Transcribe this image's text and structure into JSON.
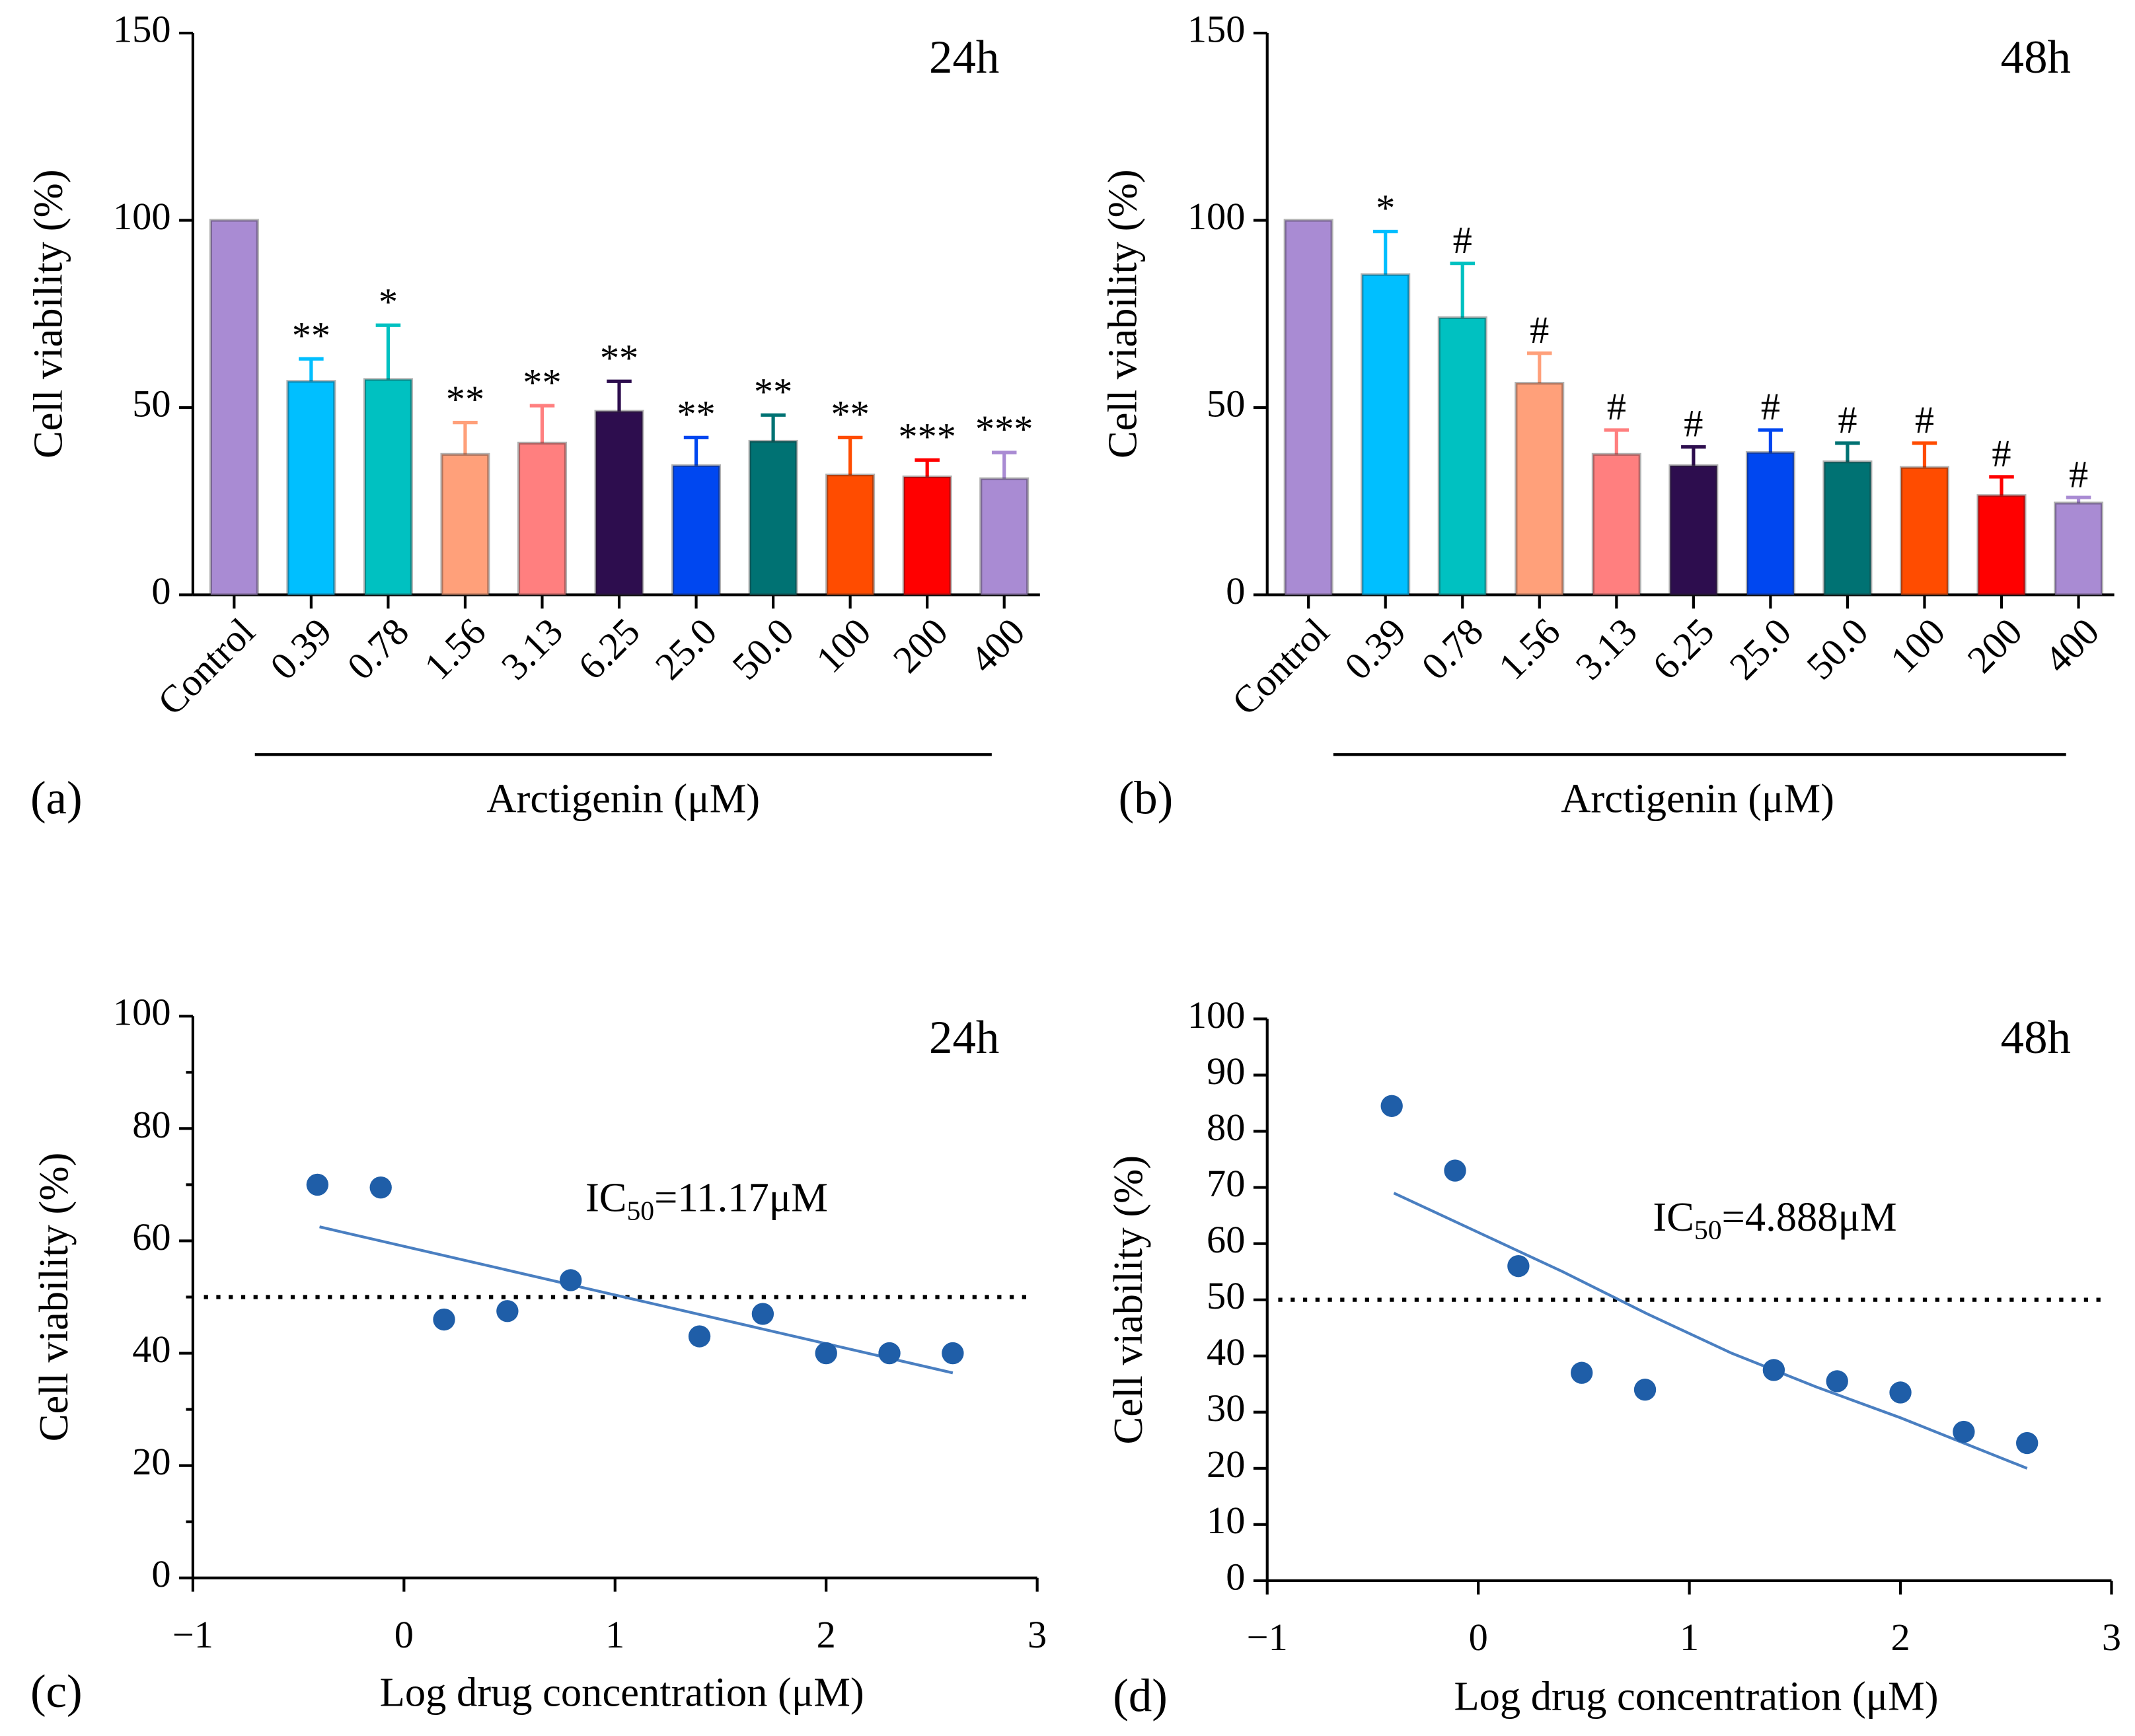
{
  "chart_data": [
    {
      "type": "bar",
      "title": "24h",
      "panel_label": "(a)",
      "x_label": "Arctigenin (μM)",
      "y_label": "Cell viability (%)",
      "categories": [
        "Control",
        "0.39",
        "0.78",
        "1.56",
        "3.13",
        "6.25",
        "25.0",
        "50.0",
        "100",
        "200",
        "400"
      ],
      "values": [
        100,
        57,
        57.5,
        37.5,
        40.5,
        49,
        34.5,
        41,
        32,
        31.5,
        31
      ],
      "errors": [
        0,
        6,
        14.5,
        8.5,
        10,
        8,
        7.5,
        7,
        10,
        4.5,
        7
      ],
      "significance": [
        null,
        "**",
        "*",
        "**",
        "**",
        "**",
        "**",
        "**",
        "**",
        "***",
        "***"
      ],
      "colors": [
        "#a98bd3",
        "#00bfff",
        "#00c1c1",
        "#ffa07a",
        "#ff7f7f",
        "#2d0d4e",
        "#0047f0",
        "#007273",
        "#ff4c00",
        "#ff0000",
        "#a98bd3"
      ],
      "ylim": [
        0,
        150
      ],
      "yticks": [
        0,
        50,
        100,
        150
      ]
    },
    {
      "type": "bar",
      "title": "48h",
      "panel_label": "(b)",
      "x_label": "Arctigenin (μM)",
      "y_label": "Cell viability (%)",
      "categories": [
        "Control",
        "0.39",
        "0.78",
        "1.56",
        "3.13",
        "6.25",
        "25.0",
        "50.0",
        "100",
        "200",
        "400"
      ],
      "values": [
        100,
        85.5,
        74,
        56.5,
        37.5,
        34.5,
        38,
        35.5,
        34,
        26.5,
        24.5
      ],
      "errors": [
        0,
        11.5,
        14.5,
        8,
        6.5,
        5,
        6,
        5,
        6.5,
        5,
        1.5
      ],
      "significance": [
        null,
        "*",
        "#",
        "#",
        "#",
        "#",
        "#",
        "#",
        "#",
        "#",
        "#"
      ],
      "colors": [
        "#a98bd3",
        "#00bfff",
        "#00c1c1",
        "#ffa07a",
        "#ff7f7f",
        "#2d0d4e",
        "#0047f0",
        "#007273",
        "#ff4c00",
        "#ff0000",
        "#a98bd3"
      ],
      "ylim": [
        0,
        150
      ],
      "yticks": [
        0,
        50,
        100,
        150
      ]
    },
    {
      "type": "scatter",
      "title": "24h",
      "panel_label": "(c)",
      "x_label": "Log drug concentration (μM)",
      "y_label": "Cell viability (%)",
      "ic50_label": [
        "IC",
        "50",
        "=11.17μM"
      ],
      "x": [
        -0.41,
        -0.11,
        0.19,
        0.49,
        0.79,
        1.4,
        1.7,
        2.0,
        2.3,
        2.6
      ],
      "y": [
        70,
        69.5,
        46,
        47.5,
        53,
        43,
        47,
        40,
        40,
        40
      ],
      "fit": {
        "x": [
          -0.4,
          2.6
        ],
        "y": [
          62.5,
          36.5
        ]
      },
      "reference_line": 50,
      "point_color": "#1f5ea8",
      "line_color": "#4a7fc1",
      "xlim": [
        -1,
        3
      ],
      "xticks": [
        {
          "value": -1,
          "label": "−1"
        },
        0,
        1,
        2,
        3
      ],
      "ylim": [
        0,
        100
      ],
      "yticks": [
        0,
        20,
        40,
        60,
        80,
        100
      ],
      "minor_yticks": [
        10,
        30,
        50,
        70,
        90
      ]
    },
    {
      "type": "scatter",
      "title": "48h",
      "panel_label": "(d)",
      "x_label": "Log drug concentration (μM)",
      "y_label": "Cell viability (%)",
      "ic50_label": [
        "IC",
        "50",
        "=4.888μM"
      ],
      "x": [
        -0.41,
        -0.11,
        0.19,
        0.49,
        0.79,
        1.4,
        1.7,
        2.0,
        2.3,
        2.6
      ],
      "y": [
        84.5,
        73,
        56,
        37,
        34,
        37.5,
        35.5,
        33.5,
        26.5,
        24.5
      ],
      "fit": {
        "x": [
          -0.4,
          0,
          0.4,
          0.8,
          1.2,
          1.6,
          2.0,
          2.6
        ],
        "y": [
          69,
          62,
          55,
          47.5,
          40.5,
          34.5,
          29,
          20
        ]
      },
      "reference_line": 50,
      "point_color": "#1f5ea8",
      "line_color": "#4a7fc1",
      "xlim": [
        -1,
        3
      ],
      "xticks": [
        {
          "value": -1,
          "label": "−1"
        },
        0,
        1,
        2,
        3
      ],
      "ylim": [
        0,
        100
      ],
      "yticks": [
        0,
        10,
        20,
        30,
        40,
        50,
        60,
        70,
        80,
        90,
        100
      ]
    }
  ]
}
